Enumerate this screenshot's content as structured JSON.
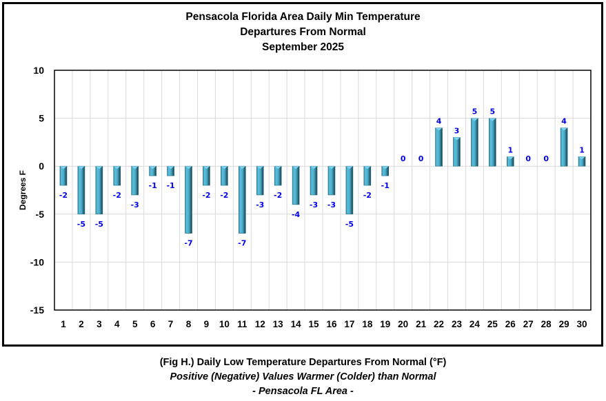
{
  "chart_data": {
    "type": "bar",
    "title": [
      "Pensacola Florida Area Daily Min Temperature",
      "Departures From Normal",
      "September 2025"
    ],
    "xlabel": "",
    "ylabel": "Degrees F",
    "ylim": [
      -15,
      10
    ],
    "yticks": [
      10,
      5,
      0,
      -5,
      -10,
      -15
    ],
    "grid": true,
    "legend": "none",
    "categories": [
      "1",
      "2",
      "3",
      "4",
      "5",
      "6",
      "7",
      "8",
      "9",
      "10",
      "11",
      "12",
      "13",
      "14",
      "15",
      "16",
      "17",
      "18",
      "19",
      "20",
      "21",
      "22",
      "23",
      "24",
      "25",
      "26",
      "27",
      "28",
      "29",
      "30"
    ],
    "values": [
      -2,
      -5,
      -5,
      -2,
      -3,
      -1,
      -1,
      -7,
      -2,
      -2,
      -7,
      -3,
      -2,
      -4,
      -3,
      -3,
      -5,
      -2,
      -1,
      0,
      0,
      4,
      3,
      5,
      5,
      1,
      0,
      0,
      4,
      1
    ],
    "colors": {
      "bar": "#4bacc6",
      "bar_dark": "#1f5a6b",
      "bar_light": "#7fd3ee",
      "label": "#0000ee",
      "grid": "#d9d9d9"
    }
  },
  "caption": {
    "line1": "(Fig H.) Daily Low Temperature Departures From Normal (°F)",
    "line2": "Positive (Negative) Values Warmer (Colder) than Normal",
    "line3": "- Pensacola FL Area -"
  }
}
